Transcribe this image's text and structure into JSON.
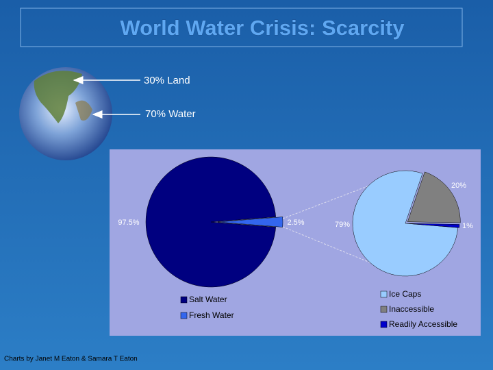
{
  "title": "World Water Crisis: Scarcity",
  "globe": {
    "labels": [
      "30% Land",
      "70% Water"
    ]
  },
  "credit": "Charts by Janet M Eaton & Samara T Eaton",
  "chart_data": [
    {
      "type": "pie",
      "categories": [
        "Salt Water",
        "Fresh Water"
      ],
      "values": [
        97.5,
        2.5
      ],
      "value_labels": [
        "97.5%",
        "2.5%"
      ],
      "colors": [
        "#000080",
        "#3366ee"
      ]
    },
    {
      "type": "pie",
      "categories": [
        "Ice Caps",
        "Inaccessible",
        "Readily Accessible"
      ],
      "values": [
        79,
        20,
        1
      ],
      "value_labels": [
        "79%",
        "20%",
        "1%"
      ],
      "colors": [
        "#99ccff",
        "#808080",
        "#0000cc"
      ]
    }
  ]
}
